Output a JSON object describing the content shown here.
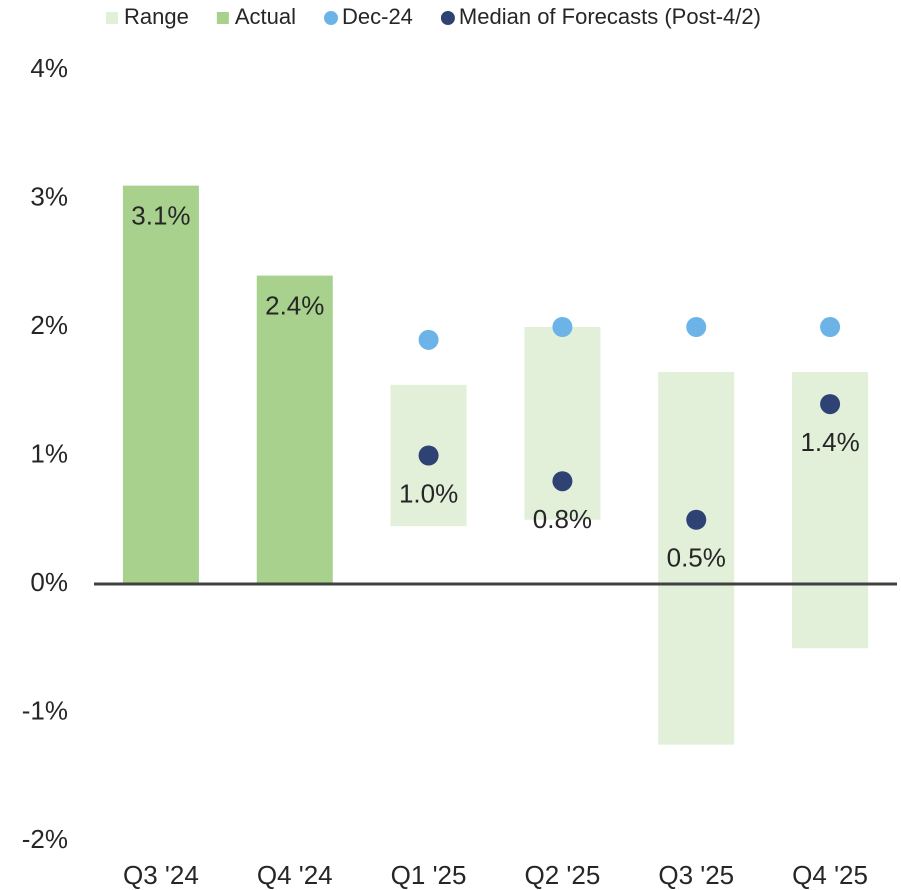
{
  "chart_data": {
    "type": "bar",
    "categories": [
      "Q3 '24",
      "Q4 '24",
      "Q1 '25",
      "Q2 '25",
      "Q3 '25",
      "Q4 '25"
    ],
    "ylim": [
      -2,
      4
    ],
    "yticks": [
      {
        "value": -2,
        "label": "-2%"
      },
      {
        "value": -1,
        "label": "-1%"
      },
      {
        "value": 0,
        "label": "0%"
      },
      {
        "value": 1,
        "label": "1%"
      },
      {
        "value": 2,
        "label": "2%"
      },
      {
        "value": 3,
        "label": "3%"
      },
      {
        "value": 4,
        "label": "4%"
      }
    ],
    "grid": false,
    "legend": "top",
    "series": [
      {
        "name": "Range",
        "color": "#e2efd9",
        "kind": "range",
        "low": [
          null,
          null,
          0.45,
          0.5,
          -1.25,
          -0.5
        ],
        "high": [
          null,
          null,
          1.55,
          2.0,
          1.65,
          1.65
        ]
      },
      {
        "name": "Actual",
        "color": "#a9d18e",
        "kind": "bar",
        "values": [
          3.1,
          2.4,
          null,
          null,
          null,
          null
        ],
        "value_labels": [
          "3.1%",
          "2.4%",
          null,
          null,
          null,
          null
        ]
      },
      {
        "name": "Dec-24",
        "color": "#6cb4e8",
        "kind": "dot",
        "values": [
          null,
          null,
          1.9,
          2.0,
          2.0,
          2.0
        ]
      },
      {
        "name": "Median of Forecasts (Post-4/2)",
        "color": "#2e4374",
        "kind": "dot",
        "values": [
          null,
          null,
          1.0,
          0.8,
          0.5,
          1.4
        ],
        "value_labels": [
          null,
          null,
          "1.0%",
          "0.8%",
          "0.5%",
          "1.4%"
        ]
      }
    ]
  }
}
